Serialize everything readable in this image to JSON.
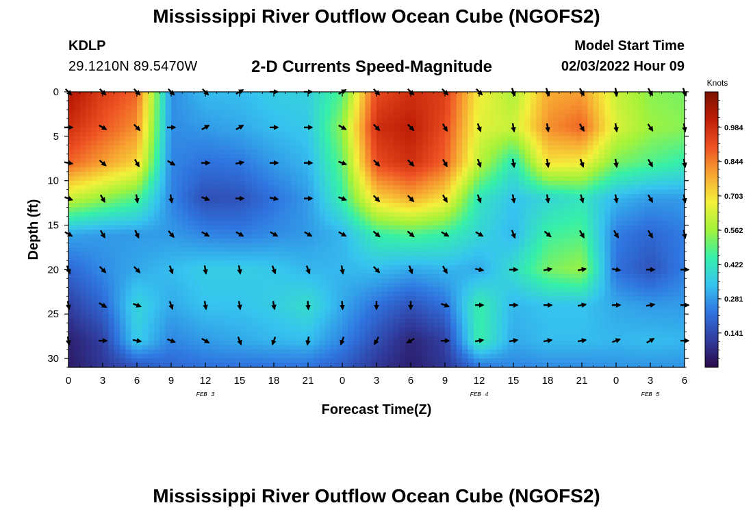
{
  "header": {
    "title": "Mississippi River Outflow Ocean Cube (NGOFS2)",
    "station_id": "KDLP",
    "station_coords": "29.1210N  89.5470W",
    "subtitle": "2-D Currents Speed-Magnitude",
    "model_start_label": "Model Start Time",
    "model_start_value": "02/03/2022 Hour 09"
  },
  "footer": {
    "title": "Mississippi River Outflow Ocean Cube (NGOFS2)"
  },
  "chart_data": {
    "type": "heatmap",
    "title": "2-D Currents Speed-Magnitude",
    "xlabel": "Forecast Time(Z)",
    "ylabel": "Depth (ft)",
    "x_ticks": [
      "0",
      "3",
      "6",
      "9",
      "12",
      "15",
      "18",
      "21",
      "0",
      "3",
      "6",
      "9",
      "12",
      "15",
      "18",
      "21",
      "0",
      "3",
      "6"
    ],
    "x_tick_hours": [
      0,
      3,
      6,
      9,
      12,
      15,
      18,
      21,
      24,
      27,
      30,
      33,
      36,
      39,
      42,
      45,
      48,
      51,
      54
    ],
    "xlim": [
      0,
      54
    ],
    "date_labels": [
      {
        "label": "FEB 3",
        "hour": 12
      },
      {
        "label": "FEB 4",
        "hour": 36
      },
      {
        "label": "FEB 5",
        "hour": 51
      }
    ],
    "y_ticks": [
      "0",
      "5",
      "10",
      "15",
      "20",
      "25",
      "30"
    ],
    "y_tick_values": [
      0,
      5,
      10,
      15,
      20,
      25,
      30
    ],
    "ylim": [
      0,
      31
    ],
    "y_inverted": true,
    "colorbar": {
      "unit": "Knots",
      "ticks": [
        "0.984",
        "0.844",
        "0.703",
        "0.562",
        "0.422",
        "0.281",
        "0.141"
      ],
      "tick_values": [
        0.984,
        0.844,
        0.703,
        0.562,
        0.422,
        0.281,
        0.141
      ],
      "min": 0.0,
      "max": 1.13,
      "colors": [
        "#2a0a4a",
        "#303c9e",
        "#2f74e0",
        "#36c4ef",
        "#36f0a8",
        "#a2f23a",
        "#f4f03a",
        "#f7a632",
        "#ee5223",
        "#bf1e06",
        "#7a1202"
      ]
    },
    "speed_grid": {
      "x_hours": [
        0,
        3,
        6,
        9,
        12,
        15,
        18,
        21,
        24,
        27,
        30,
        33,
        36,
        39,
        42,
        45,
        48,
        51,
        54
      ],
      "depths_ft": [
        0,
        4,
        8,
        12,
        16,
        20,
        24,
        28,
        31
      ],
      "values": [
        [
          1.05,
          0.95,
          0.88,
          0.26,
          0.33,
          0.33,
          0.36,
          0.37,
          0.48,
          0.92,
          0.98,
          0.95,
          0.68,
          0.58,
          0.78,
          0.8,
          0.62,
          0.54,
          0.52
        ],
        [
          0.98,
          0.9,
          0.82,
          0.26,
          0.28,
          0.3,
          0.33,
          0.35,
          0.55,
          0.98,
          1.02,
          0.92,
          0.65,
          0.62,
          0.82,
          0.88,
          0.64,
          0.56,
          0.54
        ],
        [
          0.88,
          0.8,
          0.72,
          0.25,
          0.22,
          0.23,
          0.28,
          0.32,
          0.5,
          0.92,
          0.98,
          0.88,
          0.6,
          0.42,
          0.7,
          0.68,
          0.52,
          0.48,
          0.44
        ],
        [
          0.62,
          0.55,
          0.48,
          0.25,
          0.15,
          0.16,
          0.22,
          0.28,
          0.45,
          0.72,
          0.78,
          0.7,
          0.42,
          0.34,
          0.38,
          0.42,
          0.32,
          0.28,
          0.28
        ],
        [
          0.3,
          0.28,
          0.28,
          0.28,
          0.25,
          0.24,
          0.26,
          0.28,
          0.32,
          0.45,
          0.48,
          0.45,
          0.38,
          0.32,
          0.46,
          0.48,
          0.24,
          0.2,
          0.24
        ],
        [
          0.2,
          0.26,
          0.3,
          0.33,
          0.36,
          0.36,
          0.35,
          0.32,
          0.32,
          0.33,
          0.3,
          0.32,
          0.3,
          0.4,
          0.52,
          0.56,
          0.22,
          0.16,
          0.24
        ],
        [
          0.12,
          0.2,
          0.38,
          0.3,
          0.34,
          0.34,
          0.36,
          0.4,
          0.3,
          0.22,
          0.16,
          0.22,
          0.45,
          0.32,
          0.34,
          0.34,
          0.3,
          0.28,
          0.28
        ],
        [
          0.05,
          0.12,
          0.36,
          0.25,
          0.28,
          0.3,
          0.32,
          0.33,
          0.25,
          0.15,
          0.06,
          0.12,
          0.45,
          0.3,
          0.33,
          0.33,
          0.32,
          0.33,
          0.32
        ],
        [
          0.04,
          0.1,
          0.16,
          0.2,
          0.22,
          0.22,
          0.22,
          0.22,
          0.18,
          0.1,
          0.05,
          0.1,
          0.22,
          0.25,
          0.26,
          0.26,
          0.27,
          0.27,
          0.27
        ]
      ]
    },
    "vectors": {
      "x_hours": [
        0,
        3,
        6,
        9,
        12,
        15,
        18,
        21,
        24,
        27,
        30,
        33,
        36,
        39,
        42,
        45,
        48,
        51,
        54
      ],
      "depths_ft": [
        0,
        4,
        8,
        12,
        16,
        20,
        24,
        28
      ],
      "direction_deg": [
        [
          135,
          135,
          135,
          135,
          135,
          60,
          90,
          90,
          60,
          135,
          135,
          135,
          135,
          160,
          160,
          150,
          170,
          150,
          160
        ],
        [
          90,
          120,
          135,
          90,
          60,
          60,
          90,
          90,
          120,
          135,
          135,
          150,
          160,
          170,
          170,
          150,
          170,
          145,
          170
        ],
        [
          100,
          130,
          150,
          120,
          90,
          80,
          90,
          90,
          110,
          135,
          135,
          150,
          160,
          170,
          170,
          160,
          170,
          150,
          170
        ],
        [
          110,
          150,
          170,
          170,
          110,
          90,
          100,
          90,
          110,
          135,
          135,
          150,
          160,
          170,
          170,
          165,
          170,
          150,
          170
        ],
        [
          120,
          150,
          155,
          140,
          120,
          120,
          120,
          120,
          120,
          130,
          130,
          120,
          120,
          160,
          130,
          150,
          150,
          150,
          170
        ],
        [
          160,
          135,
          135,
          160,
          170,
          170,
          160,
          160,
          170,
          135,
          160,
          150,
          100,
          90,
          80,
          80,
          100,
          90,
          90
        ],
        [
          170,
          120,
          110,
          160,
          170,
          170,
          170,
          175,
          175,
          180,
          180,
          110,
          90,
          90,
          90,
          80,
          90,
          80,
          90
        ],
        [
          170,
          90,
          100,
          110,
          120,
          160,
          200,
          190,
          200,
          210,
          240,
          90,
          80,
          80,
          80,
          80,
          70,
          60,
          90
        ]
      ]
    }
  }
}
